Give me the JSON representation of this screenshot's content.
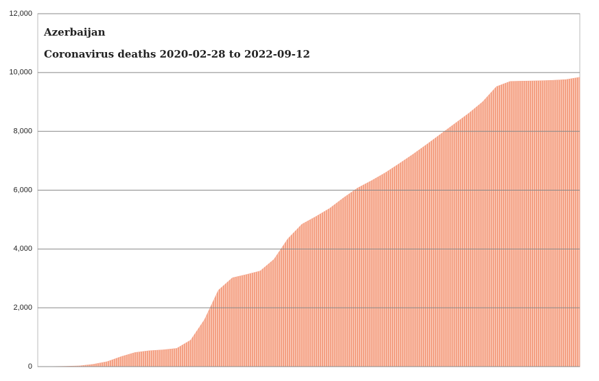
{
  "chart_data": {
    "type": "area",
    "title": "Azerbaijan",
    "subtitle": "Coronavirus deaths 2020-02-28 to 2022-09-12",
    "values": [
      0,
      5,
      12,
      25,
      80,
      170,
      340,
      480,
      540,
      570,
      620,
      900,
      1600,
      2600,
      3020,
      3130,
      3250,
      3650,
      4350,
      4840,
      5100,
      5380,
      5740,
      6070,
      6320,
      6590,
      6900,
      7220,
      7560,
      7910,
      8260,
      8610,
      9000,
      9520,
      9700,
      9710,
      9720,
      9735,
      9760,
      9840
    ],
    "color": "#f5a58c",
    "ylim": [
      0,
      12000
    ],
    "yticks": [
      0,
      {
        "value": 2000,
        "label": "2,000"
      },
      {
        "value": 4000,
        "label": "4,000"
      },
      {
        "value": 6000,
        "label": "6,000"
      },
      {
        "value": 8000,
        "label": "8,000"
      },
      {
        "value": 10000,
        "label": "10,000"
      },
      {
        "value": 12000,
        "label": "12,000"
      }
    ],
    "grid": true
  }
}
